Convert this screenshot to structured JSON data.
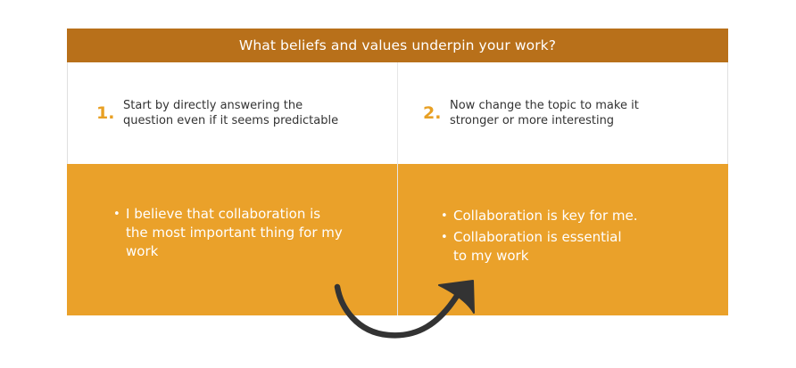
{
  "header": {
    "title": "What beliefs and values underpin your work?"
  },
  "steps": [
    {
      "number": "1.",
      "text": "Start by directly answering the\nquestion even if it seems predictable"
    },
    {
      "number": "2.",
      "text": "Now change the topic to make it\nstronger or more interesting"
    }
  ],
  "columns": {
    "left": {
      "bullets": [
        "I believe that collaboration is\nthe most important thing for my\nwork"
      ]
    },
    "right": {
      "bullets": [
        "Collaboration is key for me.",
        "Collaboration is essential\nto my work"
      ]
    }
  },
  "colors": {
    "header": "#b8701a",
    "accent": "#e8a024",
    "body": "#eaa12a",
    "arrow": "#333333"
  },
  "icons": {
    "arrow": "curved-arrow-icon",
    "bullet": "•"
  }
}
